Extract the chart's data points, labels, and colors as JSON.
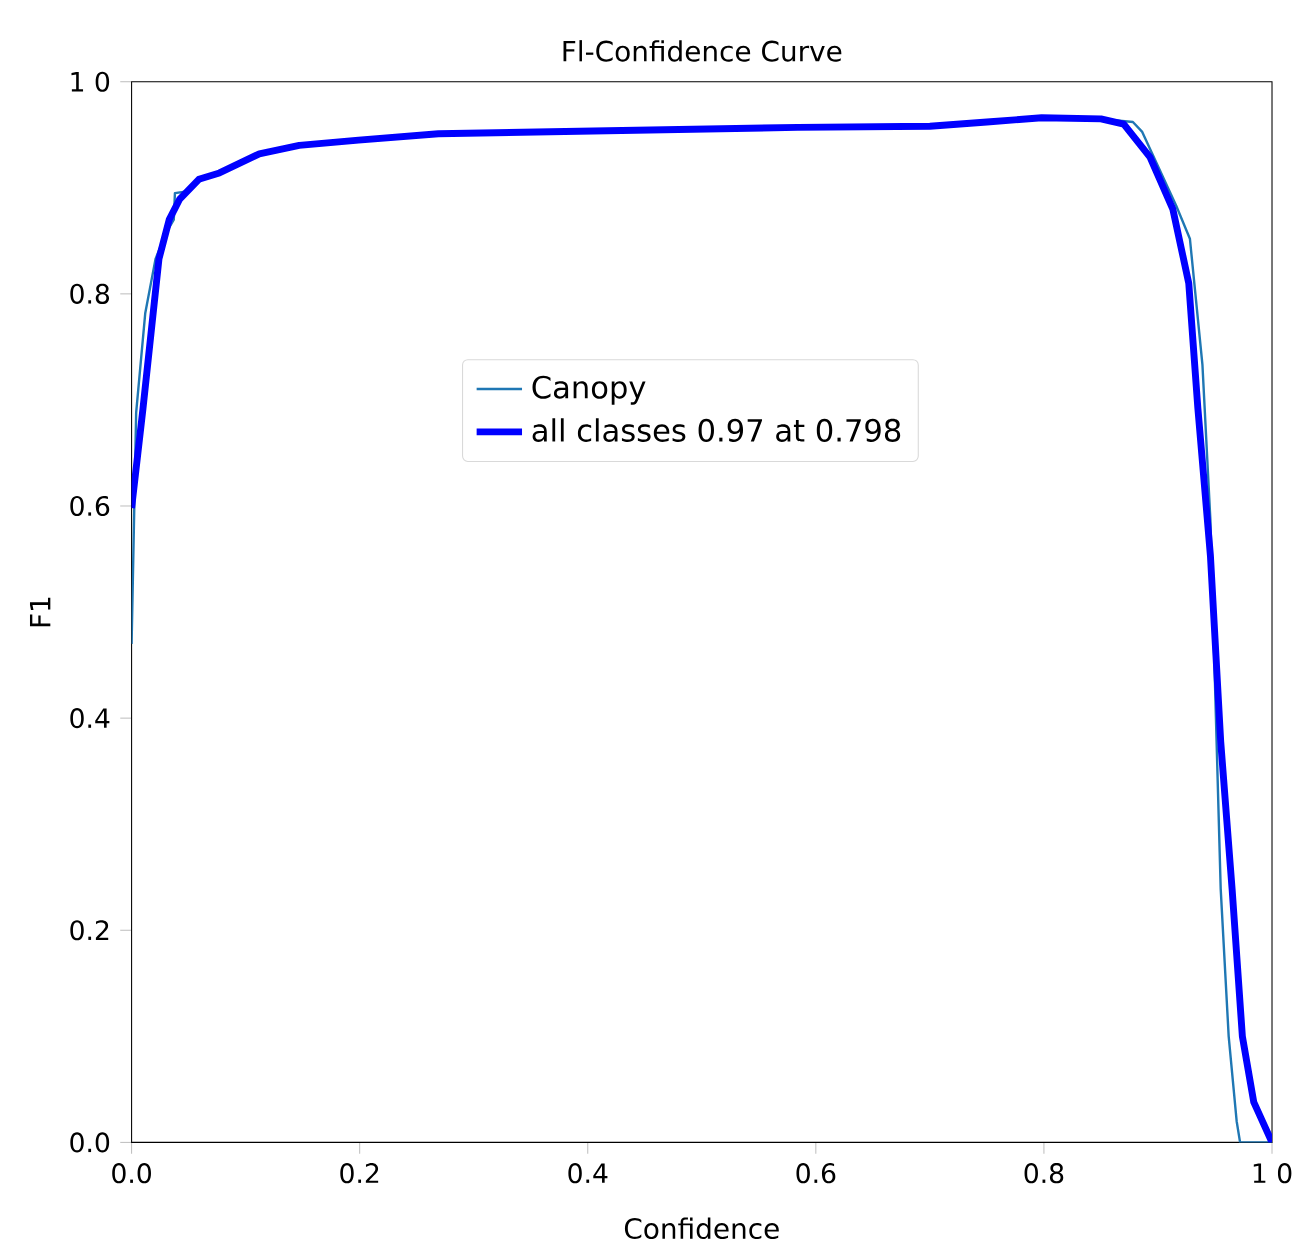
{
  "chart_data": {
    "type": "line",
    "title": "Fl-Confidence Curve",
    "xlabel": "Confidence",
    "ylabel": "F1",
    "xlim": [
      0,
      1
    ],
    "ylim": [
      0,
      1
    ],
    "xticks": [
      {
        "value": 0,
        "label": "0.0"
      },
      {
        "value": 0.2,
        "label": "0.2"
      },
      {
        "value": 0.4,
        "label": "0.4"
      },
      {
        "value": 0.6,
        "label": "0.6"
      },
      {
        "value": 0.8,
        "label": "0.8"
      },
      {
        "value": 1,
        "label": "1 0"
      }
    ],
    "yticks": [
      {
        "value": 0,
        "label": "0.0"
      },
      {
        "value": 0.2,
        "label": "0.2"
      },
      {
        "value": 0.4,
        "label": "0.4"
      },
      {
        "value": 0.6,
        "label": "0.6"
      },
      {
        "value": 0.8,
        "label": "0.8"
      },
      {
        "value": 1,
        "label": "1 0"
      }
    ],
    "legend": "center",
    "grid": false,
    "series": [
      {
        "name": "Canopy",
        "color": "#1f77b4",
        "x": [
          0,
          0.004,
          0.012,
          0.021,
          0.03,
          0.037,
          0.038,
          0.051,
          0.059,
          0.077,
          0.112,
          0.147,
          0.199,
          0.269,
          0.584,
          0.7,
          0.75,
          0.798,
          0.85,
          0.878,
          0.886,
          0.916,
          0.928,
          0.939,
          0.946,
          0.955,
          0.962,
          0.969,
          0.972,
          1.0
        ],
        "values": [
          0.47,
          0.688,
          0.782,
          0.833,
          0.857,
          0.87,
          0.895,
          0.897,
          0.908,
          0.914,
          0.932,
          0.94,
          0.945,
          0.951,
          0.957,
          0.958,
          0.962,
          0.966,
          0.965,
          0.962,
          0.953,
          0.883,
          0.852,
          0.733,
          0.586,
          0.239,
          0.1,
          0.02,
          0,
          0
        ]
      },
      {
        "name": "all classes 0.97 at 0.798",
        "color": "#0000ff",
        "x": [
          0,
          0.01,
          0.024,
          0.033,
          0.042,
          0.059,
          0.077,
          0.112,
          0.147,
          0.199,
          0.269,
          0.584,
          0.7,
          0.75,
          0.798,
          0.85,
          0.87,
          0.893,
          0.913,
          0.927,
          0.935,
          0.946,
          0.955,
          0.965,
          0.974,
          0.984,
          1.0
        ],
        "values": [
          0.598,
          0.692,
          0.833,
          0.87,
          0.889,
          0.908,
          0.914,
          0.932,
          0.94,
          0.945,
          0.951,
          0.957,
          0.958,
          0.962,
          0.966,
          0.965,
          0.96,
          0.929,
          0.88,
          0.81,
          0.692,
          0.553,
          0.378,
          0.239,
          0.1,
          0.038,
          0
        ]
      }
    ]
  }
}
